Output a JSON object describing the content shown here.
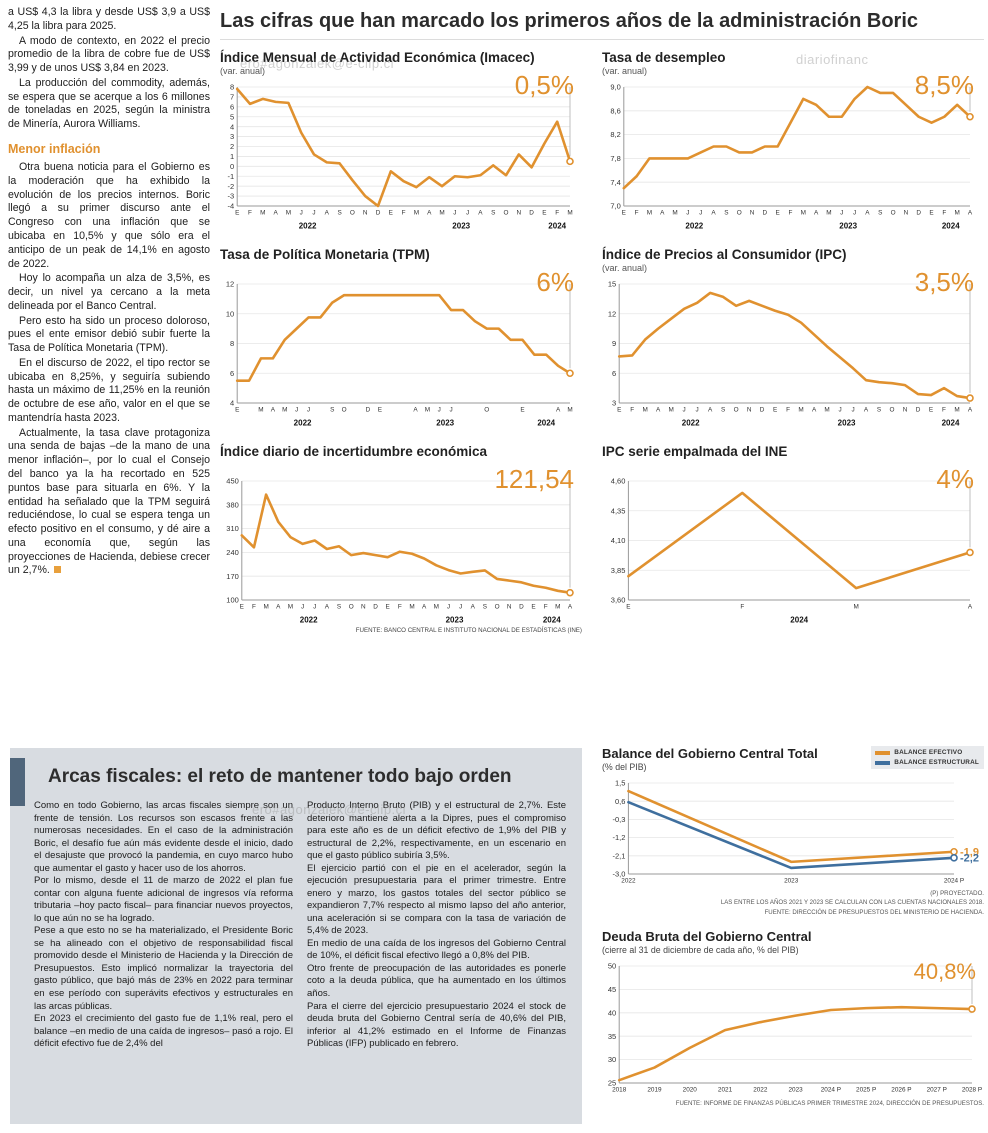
{
  "accent_color": "#E0912F",
  "blue_color": "#3F6F9E",
  "watermarks": {
    "top_left": "ero#agonzalek@e-clip.cl",
    "top_right": "diariofinanc",
    "bottom": "ero#agonzalek@e-clip.cl"
  },
  "left_article": {
    "paragraphs_top": [
      "a US$ 4,3 la libra y desde US$ 3,9 a US$ 4,25 la libra para 2025.",
      "A modo de contexto, en 2022 el precio promedio de la libra de cobre fue de US$ 3,99 y de unos US$ 3,84 en 2023.",
      "La producción del commodity, además, se espera que se acerque a los 6 millones de toneladas en 2025, según la ministra de Minería, Aurora Williams."
    ],
    "subhead": "Menor inflación",
    "paragraphs_inflacion": [
      "Otra buena noticia para el Gobierno es la moderación que ha exhibido la evolución de los precios internos. Boric llegó a su primer discurso ante el Congreso con una inflación que se ubicaba en 10,5% y que sólo era el anticipo de un peak de 14,1% en agosto de 2022.",
      "Hoy lo acompaña un alza de 3,5%, es decir, un nivel ya cercano a la meta delineada por el Banco Central.",
      "Pero esto ha sido un proceso doloroso, pues el ente emisor debió subir fuerte la Tasa de Política Monetaria (TPM).",
      "En el discurso de 2022, el tipo rector se ubicaba en 8,25%, y seguiría subiendo hasta un máximo de 11,25% en la reunión de octubre de ese año, valor en el que se mantendría hasta 2023.",
      "Actualmente, la tasa clave protagoniza una senda de bajas –de la mano de una menor inflación–, por lo cual el Consejo del banco ya la ha recortado en 525 puntos base para situarla en 6%. Y la entidad ha señalado que la TPM seguirá reduciéndose, lo cual se espera tenga un efecto positivo en el consumo, y dé aire a una economía que, según las proyecciones de Hacienda, debiese crecer un 2,7%."
    ]
  },
  "main": {
    "title": "Las cifras que han marcado los primeros años de la administración Boric"
  },
  "chart_data": [
    {
      "id": "imacec",
      "type": "line",
      "title": "Índice Mensual de Actividad Económica (Imacec)",
      "subtitle": "(var. anual)",
      "big_value": "0,5%",
      "color": "#E0912F",
      "ylim": [
        -4,
        8
      ],
      "y_ticks": [
        [
          8,
          "8"
        ],
        [
          7,
          "7"
        ],
        [
          6,
          "6"
        ],
        [
          5,
          "5"
        ],
        [
          4,
          "4"
        ],
        [
          3,
          "3"
        ],
        [
          2,
          "2"
        ],
        [
          1,
          "1"
        ],
        [
          0,
          "0"
        ],
        [
          -1,
          "-1"
        ],
        [
          -2,
          "-2"
        ],
        [
          -3,
          "-3"
        ],
        [
          -4,
          "-4"
        ]
      ],
      "x_labels": [
        "E",
        "F",
        "M",
        "A",
        "M",
        "J",
        "J",
        "A",
        "S",
        "O",
        "N",
        "D",
        "E",
        "F",
        "M",
        "A",
        "M",
        "J",
        "J",
        "A",
        "S",
        "O",
        "N",
        "D",
        "E",
        "F",
        "M"
      ],
      "years": [
        {
          "label": "2022",
          "pos": 5.5
        },
        {
          "label": "2023",
          "pos": 17.5
        },
        {
          "label": "2024",
          "pos": 25
        }
      ],
      "values": [
        7.8,
        6.3,
        6.8,
        6.5,
        6.4,
        3.4,
        1.2,
        0.4,
        0.3,
        -1.4,
        -3.0,
        -4.0,
        -0.5,
        -1.5,
        -2.1,
        -1.1,
        -2.0,
        -1.0,
        -1.1,
        -0.9,
        0.1,
        -0.9,
        1.2,
        -0.1,
        2.3,
        4.5,
        0.5
      ]
    },
    {
      "id": "desempleo",
      "type": "line",
      "title": "Tasa de desempleo",
      "subtitle": "(var. anual)",
      "big_value": "8,5%",
      "color": "#E0912F",
      "ylim": [
        7.0,
        9.0
      ],
      "y_ticks": [
        [
          9.0,
          "9,0"
        ],
        [
          8.6,
          "8,6"
        ],
        [
          8.2,
          "8,2"
        ],
        [
          7.8,
          "7,8"
        ],
        [
          7.4,
          "7,4"
        ],
        [
          7.0,
          "7,0"
        ]
      ],
      "x_labels": [
        "E",
        "F",
        "M",
        "A",
        "M",
        "J",
        "J",
        "A",
        "S",
        "O",
        "N",
        "D",
        "E",
        "F",
        "M",
        "A",
        "M",
        "J",
        "J",
        "A",
        "S",
        "O",
        "N",
        "D",
        "E",
        "F",
        "M",
        "A"
      ],
      "years": [
        {
          "label": "2022",
          "pos": 5.5
        },
        {
          "label": "2023",
          "pos": 17.5
        },
        {
          "label": "2024",
          "pos": 25.5
        }
      ],
      "values": [
        7.3,
        7.5,
        7.8,
        7.8,
        7.8,
        7.8,
        7.9,
        8.0,
        8.0,
        7.9,
        7.9,
        8.0,
        8.0,
        8.4,
        8.8,
        8.7,
        8.5,
        8.5,
        8.8,
        9.0,
        8.9,
        8.9,
        8.7,
        8.5,
        8.4,
        8.5,
        8.7,
        8.5
      ]
    },
    {
      "id": "tpm",
      "type": "line",
      "title": "Tasa de Política Monetaria (TPM)",
      "subtitle": "",
      "big_value": "6%",
      "color": "#E0912F",
      "ylim": [
        4,
        12
      ],
      "y_ticks": [
        [
          12,
          "12"
        ],
        [
          10,
          "10"
        ],
        [
          8,
          "8"
        ],
        [
          6,
          "6"
        ],
        [
          4,
          "4"
        ]
      ],
      "x_labels": [
        "E",
        "",
        "M",
        "A",
        "M",
        "J",
        "J",
        "",
        "S",
        "O",
        "",
        "D",
        "E",
        "",
        "",
        "A",
        "M",
        "J",
        "J",
        "",
        "",
        "O",
        "",
        "",
        "E",
        "",
        "",
        "A",
        "M"
      ],
      "years": [
        {
          "label": "2022",
          "pos": 5.5
        },
        {
          "label": "2023",
          "pos": 17.5
        },
        {
          "label": "2024",
          "pos": 26
        }
      ],
      "values": [
        5.5,
        5.5,
        7.0,
        7.0,
        8.25,
        9.0,
        9.75,
        9.75,
        10.75,
        11.25,
        11.25,
        11.25,
        11.25,
        11.25,
        11.25,
        11.25,
        11.25,
        11.25,
        10.25,
        10.25,
        9.5,
        9.0,
        9.0,
        8.25,
        8.25,
        7.25,
        7.25,
        6.5,
        6.0
      ]
    },
    {
      "id": "ipc",
      "type": "line",
      "title": "Índice de Precios al Consumidor (IPC)",
      "subtitle": "(var. anual)",
      "big_value": "3,5%",
      "color": "#E0912F",
      "ylim": [
        3,
        15
      ],
      "y_ticks": [
        [
          15,
          "15"
        ],
        [
          12,
          "12"
        ],
        [
          9,
          "9"
        ],
        [
          6,
          "6"
        ],
        [
          3,
          "3"
        ]
      ],
      "x_labels": [
        "E",
        "F",
        "M",
        "A",
        "M",
        "J",
        "J",
        "A",
        "S",
        "O",
        "N",
        "D",
        "E",
        "F",
        "M",
        "A",
        "M",
        "J",
        "J",
        "A",
        "S",
        "O",
        "N",
        "D",
        "E",
        "F",
        "M",
        "A"
      ],
      "years": [
        {
          "label": "2022",
          "pos": 5.5
        },
        {
          "label": "2023",
          "pos": 17.5
        },
        {
          "label": "2024",
          "pos": 25.5
        }
      ],
      "values": [
        7.7,
        7.8,
        9.4,
        10.5,
        11.5,
        12.5,
        13.1,
        14.1,
        13.7,
        12.8,
        13.3,
        12.8,
        12.3,
        11.9,
        11.1,
        9.9,
        8.7,
        7.6,
        6.5,
        5.3,
        5.1,
        5.0,
        4.8,
        3.9,
        3.8,
        4.5,
        3.7,
        3.5
      ]
    },
    {
      "id": "incertidumbre",
      "type": "line",
      "title": "Índice diario de incertidumbre económica",
      "subtitle": "",
      "big_value": "121,54",
      "color": "#E0912F",
      "ylim": [
        100,
        450
      ],
      "y_ticks": [
        [
          450,
          "450"
        ],
        [
          380,
          "380"
        ],
        [
          310,
          "310"
        ],
        [
          240,
          "240"
        ],
        [
          170,
          "170"
        ],
        [
          100,
          "100"
        ]
      ],
      "x_labels": [
        "E",
        "F",
        "M",
        "A",
        "M",
        "J",
        "J",
        "A",
        "S",
        "O",
        "N",
        "D",
        "E",
        "F",
        "M",
        "A",
        "M",
        "J",
        "J",
        "A",
        "S",
        "O",
        "N",
        "D",
        "E",
        "F",
        "M",
        "A"
      ],
      "years": [
        {
          "label": "2022",
          "pos": 5.5
        },
        {
          "label": "2023",
          "pos": 17.5
        },
        {
          "label": "2024",
          "pos": 25.5
        }
      ],
      "values": [
        290,
        255,
        410,
        330,
        285,
        265,
        275,
        250,
        258,
        232,
        238,
        232,
        226,
        242,
        236,
        222,
        202,
        188,
        178,
        183,
        187,
        162,
        157,
        152,
        142,
        136,
        127,
        121.54
      ],
      "source": "FUENTE: BANCO CENTRAL E INSTITUTO NACIONAL DE ESTADÍSTICAS (INE)"
    },
    {
      "id": "ipc_ine",
      "type": "line",
      "title": "IPC serie empalmada del INE",
      "subtitle": "",
      "big_value": "4%",
      "color": "#E0912F",
      "ylim": [
        3.6,
        4.6
      ],
      "y_ticks": [
        [
          4.6,
          "4,60"
        ],
        [
          4.35,
          "4,35"
        ],
        [
          4.1,
          "4,10"
        ],
        [
          3.85,
          "3,85"
        ],
        [
          3.6,
          "3,60"
        ]
      ],
      "x_labels": [
        "E",
        "F",
        "M",
        "A"
      ],
      "years": [
        {
          "label": "2024",
          "pos": 1.5
        }
      ],
      "values": [
        3.8,
        4.5,
        3.7,
        4.0
      ]
    },
    {
      "id": "balance",
      "type": "line",
      "title": "Balance del Gobierno Central Total",
      "subtitle": "(% del PIB)",
      "ylim": [
        -3.0,
        1.5
      ],
      "y_ticks": [
        [
          1.5,
          "1,5"
        ],
        [
          0.6,
          "0,6"
        ],
        [
          -0.3,
          "-0,3"
        ],
        [
          -1.2,
          "-1,2"
        ],
        [
          -2.1,
          "-2,1"
        ],
        [
          -3.0,
          "-3,0"
        ]
      ],
      "x_labels": [
        "2022",
        "2023",
        "2024 P"
      ],
      "series": [
        {
          "name": "BALANCE EFECTIVO",
          "color": "#E0912F",
          "values": [
            1.1,
            -2.4,
            -1.9
          ],
          "end_label": "-1,9"
        },
        {
          "name": "BALANCE ESTRUCTURAL",
          "color": "#3F6F9E",
          "values": [
            0.55,
            -2.7,
            -2.2
          ],
          "end_label": "-2,2"
        }
      ],
      "notes": [
        "(P) PROYECTADO.",
        "LAS ENTRE LOS AÑOS 2021 Y 2023 SE CALCULAN  CON LAS CUENTAS NACIONALES 2018.",
        "FUENTE: DIRECCIÓN DE PRESUPUESTOS DEL MINISTERIO DE HACIENDA."
      ]
    },
    {
      "id": "deuda",
      "type": "line",
      "title": "Deuda Bruta del Gobierno Central",
      "subtitle": "(cierre al 31 de diciembre de cada año, % del PIB)",
      "big_value": "40,8%",
      "color": "#E0912F",
      "ylim": [
        25,
        50
      ],
      "y_ticks": [
        [
          50,
          "50"
        ],
        [
          45,
          "45"
        ],
        [
          40,
          "40"
        ],
        [
          35,
          "35"
        ],
        [
          30,
          "30"
        ],
        [
          25,
          "25"
        ]
      ],
      "x_labels": [
        "2018",
        "2019",
        "2020",
        "2021",
        "2022",
        "2023",
        "2024 P",
        "2025 P",
        "2026 P",
        "2027 P",
        "2028 P"
      ],
      "values": [
        25.6,
        28.3,
        32.5,
        36.3,
        38.0,
        39.4,
        40.6,
        41.0,
        41.2,
        41.0,
        40.8
      ],
      "source": "FUENTE: INFORME DE FINANZAS PÚBLICAS PRIMER TRIMESTRE 2024, DIRECCIÓN DE PRESUPUESTOS."
    }
  ],
  "fiscal": {
    "title": "Arcas fiscales: el reto de mantener todo bajo orden",
    "col1": [
      "Como en todo Gobierno, las arcas fiscales siempre son un frente de tensión. Los recursos son escasos frente a las numerosas necesidades. En el caso de la administración Boric, el desafío fue aún más evidente desde el inicio, dado el desajuste que provocó la pandemia, en cuyo marco hubo que aumentar el gasto y hacer uso de los ahorros.",
      "Por lo mismo, desde el 11 de marzo de 2022 el plan fue contar con alguna fuente adicional de ingresos vía reforma tributaria –hoy pacto fiscal– para financiar nuevos proyectos, lo que aún no se ha logrado.",
      "Pese a que esto no se ha materializado, el Presidente Boric se ha alineado con el objetivo de responsabilidad fiscal promovido desde el Ministerio de Hacienda y la Dirección de Presupuestos. Esto implicó normalizar la trayectoria del gasto público, que bajó más de 23% en 2022 para terminar en ese período con superávits efectivos y estructurales en las arcas públicas.",
      "En 2023 el crecimiento del gasto fue de 1,1% real, pero el balance –en medio de una caída de ingresos– pasó a rojo. El déficit efectivo fue de 2,4% del"
    ],
    "col2": [
      "Producto Interno Bruto (PIB) y el estructural de 2,7%. Este deterioro mantiene alerta a la Dipres, pues el compromiso para este año es de un déficit efectivo de 1,9% del PIB y estructural de 2,2%, respectivamente, en un escenario en que el gasto público subiría 3,5%.",
      "El ejercicio partió con el pie en el acelerador, según la ejecución presupuestaria para el primer trimestre. Entre enero y marzo, los gastos totales del sector público se expandieron 7,7% respecto al mismo lapso del año anterior, una aceleración si se compara con la tasa de variación de 5,4% de 2023.",
      "En medio de una caída de los ingresos del Gobierno Central de 10%, el déficit fiscal efectivo llegó a 0,8% del PIB.",
      "Otro frente de preocupación de las autoridades es ponerle coto a la deuda pública, que ha aumentado en los últimos años.",
      "Para el cierre del ejercicio presupuestario 2024 el stock de deuda bruta del Gobierno Central sería de 40,6% del PIB, inferior al 41,2% estimado en el Informe de Finanzas Públicas (IFP) publicado en febrero."
    ]
  }
}
